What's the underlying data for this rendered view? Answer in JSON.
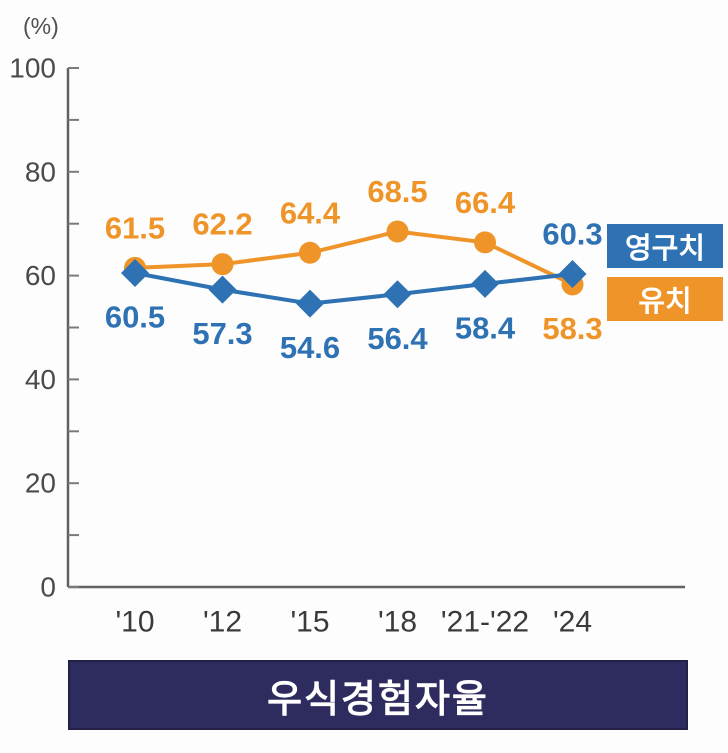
{
  "title": "우식경험자율",
  "legend": [
    {
      "label": "영구치",
      "color": "#2e72b4"
    },
    {
      "label": "유치",
      "color": "#ef9428"
    }
  ],
  "colors": {
    "title_bar_bg": "#2e2c5e",
    "title_text": "#ffffff",
    "axis": "#616161",
    "tick": "#7a7a7a",
    "y_tick_label": "#4a4a4a",
    "x_tick_label": "#3a3a3a",
    "permanent_teeth_blue": "#2e72b4",
    "primary_teeth_orange": "#ef9428"
  },
  "chart_data": {
    "type": "line",
    "title": "우식경험자율",
    "ylabel": "(%)",
    "xlabel": "",
    "categories": [
      "'10",
      "'12",
      "'15",
      "'18",
      "'21-'22",
      "'24"
    ],
    "series": [
      {
        "name": "유치",
        "color": "#ef9428",
        "marker": "circle",
        "values": [
          61.5,
          62.2,
          64.4,
          68.5,
          66.4,
          58.3
        ],
        "label_positions": [
          "above",
          "above",
          "above",
          "above",
          "above",
          "below"
        ]
      },
      {
        "name": "영구치",
        "color": "#2e72b4",
        "marker": "diamond",
        "values": [
          60.5,
          57.3,
          54.6,
          56.4,
          58.4,
          60.3
        ],
        "label_positions": [
          "below",
          "below",
          "below",
          "below",
          "below",
          "above"
        ]
      }
    ],
    "ylim": [
      0,
      100
    ],
    "y_ticks": [
      0,
      20,
      40,
      60,
      80,
      100
    ],
    "y_minor_tick_step": 10,
    "grid": false,
    "legend_position": "right"
  }
}
